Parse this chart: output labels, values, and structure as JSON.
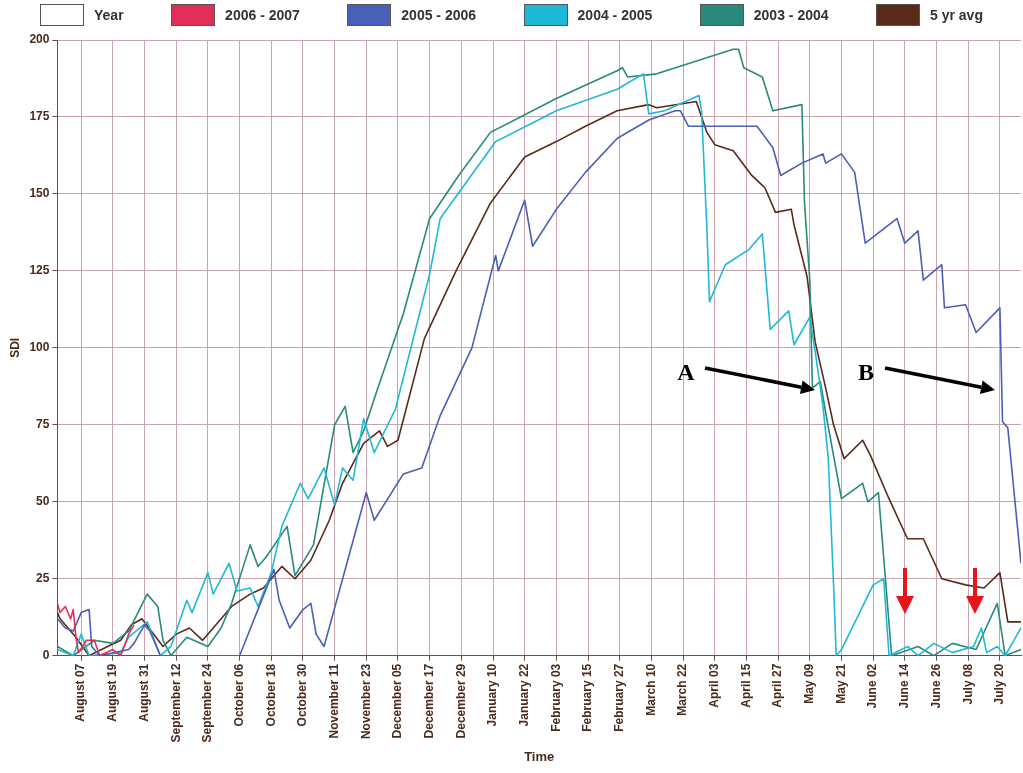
{
  "chart_data": {
    "type": "line",
    "xlabel": "Time",
    "ylabel": "SDI",
    "legend_title": "Year",
    "legend": "top",
    "grid": true,
    "xlim": [
      "2003-07-29",
      "2004-07-28"
    ],
    "ylim": [
      0,
      200
    ],
    "yticks": [
      0,
      25,
      50,
      75,
      100,
      125,
      150,
      175,
      200
    ],
    "xticks": [
      {
        "value": "2003-08-07",
        "label": "August 07"
      },
      {
        "value": "2003-08-19",
        "label": "August 19"
      },
      {
        "value": "2003-08-31",
        "label": "August 31"
      },
      {
        "value": "2003-09-12",
        "label": "September 12"
      },
      {
        "value": "2003-09-24",
        "label": "September 24"
      },
      {
        "value": "2003-10-06",
        "label": "October 06"
      },
      {
        "value": "2003-10-18",
        "label": "October 18"
      },
      {
        "value": "2003-10-30",
        "label": "October 30"
      },
      {
        "value": "2003-11-11",
        "label": "November 11"
      },
      {
        "value": "2003-11-23",
        "label": "November 23"
      },
      {
        "value": "2003-12-05",
        "label": "December 05"
      },
      {
        "value": "2003-12-17",
        "label": "December 17"
      },
      {
        "value": "2003-12-29",
        "label": "December 29"
      },
      {
        "value": "2004-01-10",
        "label": "January 10"
      },
      {
        "value": "2004-01-22",
        "label": "January 22"
      },
      {
        "value": "2004-02-03",
        "label": "February 03"
      },
      {
        "value": "2004-02-15",
        "label": "February 15"
      },
      {
        "value": "2004-02-27",
        "label": "February 27"
      },
      {
        "value": "2004-03-10",
        "label": "March 10"
      },
      {
        "value": "2004-03-22",
        "label": "March 22"
      },
      {
        "value": "2004-04-03",
        "label": "April 03"
      },
      {
        "value": "2004-04-15",
        "label": "April 15"
      },
      {
        "value": "2004-04-27",
        "label": "April 27"
      },
      {
        "value": "2004-05-09",
        "label": "May 09"
      },
      {
        "value": "2004-05-21",
        "label": "May 21"
      },
      {
        "value": "2004-06-02",
        "label": "June 02"
      },
      {
        "value": "2004-06-14",
        "label": "June 14"
      },
      {
        "value": "2004-06-26",
        "label": "June 26"
      },
      {
        "value": "2004-07-08",
        "label": "July 08"
      },
      {
        "value": "2004-07-20",
        "label": "July 20"
      }
    ],
    "annotations": [
      "A",
      "B"
    ],
    "series": [
      {
        "name": "2006 - 2007",
        "color": "#e0305a",
        "x": [
          "2003-07-29",
          "2003-07-30",
          "2003-08-01",
          "2003-08-03",
          "2003-08-04",
          "2003-08-05",
          "2003-08-06",
          "2003-08-09",
          "2003-08-12",
          "2003-08-14",
          "2003-08-19",
          "2003-08-22",
          "2003-08-25",
          "2003-08-27"
        ],
        "values": [
          17,
          14,
          16,
          12,
          15,
          6,
          1,
          5,
          5,
          0,
          2,
          0,
          7,
          10
        ]
      },
      {
        "name": "2005 - 2006",
        "color": "#4a5fb8",
        "x": [
          "2003-07-29",
          "2003-08-01",
          "2003-08-04",
          "2003-08-07",
          "2003-08-10",
          "2003-08-11",
          "2003-08-14",
          "2003-08-25",
          "2003-08-27",
          "2003-08-31",
          "2003-09-02",
          "2003-09-06",
          "2003-10-06",
          "2003-10-19",
          "2003-10-21",
          "2003-10-25",
          "2003-10-30",
          "2003-11-02",
          "2003-11-04",
          "2003-11-07",
          "2003-11-23",
          "2003-11-26",
          "2003-12-07",
          "2003-12-14",
          "2003-12-21",
          "2004-01-02",
          "2004-01-11",
          "2004-01-12",
          "2004-01-22",
          "2004-01-25",
          "2004-02-03",
          "2004-02-14",
          "2004-02-26",
          "2004-03-09",
          "2004-03-19",
          "2004-03-21",
          "2004-03-24",
          "2004-04-19",
          "2004-04-25",
          "2004-04-28",
          "2004-05-06",
          "2004-05-14",
          "2004-05-15",
          "2004-05-21",
          "2004-05-26",
          "2004-05-30",
          "2004-06-05",
          "2004-06-11",
          "2004-06-14",
          "2004-06-19",
          "2004-06-21",
          "2004-06-28",
          "2004-06-29",
          "2004-07-07",
          "2004-07-11",
          "2004-07-20",
          "2004-07-21",
          "2004-07-23",
          "2004-07-28"
        ],
        "values": [
          12,
          9,
          8,
          14,
          15,
          3,
          0,
          2,
          4,
          10,
          8,
          0,
          0,
          28,
          18,
          9,
          15,
          17,
          7,
          3,
          53,
          44,
          59,
          61,
          78,
          100,
          130,
          125,
          148,
          133,
          145,
          157,
          168,
          174,
          177,
          177,
          172,
          172,
          165,
          156,
          160,
          163,
          160,
          163,
          157,
          134,
          138,
          142,
          134,
          138,
          122,
          127,
          113,
          114,
          105,
          113,
          76,
          74,
          30
        ]
      },
      {
        "name": "2004 - 2005",
        "color": "#20b8d8",
        "x": [
          "2003-07-29",
          "2003-08-04",
          "2003-08-07",
          "2003-08-10",
          "2003-08-22",
          "2003-08-25",
          "2003-09-01",
          "2003-09-06",
          "2003-09-10",
          "2003-09-16",
          "2003-09-18",
          "2003-09-24",
          "2003-09-26",
          "2003-10-02",
          "2003-10-05",
          "2003-10-10",
          "2003-10-13",
          "2003-10-18",
          "2003-10-22",
          "2003-10-29",
          "2003-11-01",
          "2003-11-07",
          "2003-11-11",
          "2003-11-14",
          "2003-11-18",
          "2003-11-22",
          "2003-11-26",
          "2003-12-04",
          "2003-12-17",
          "2003-12-21",
          "2004-01-11",
          "2004-02-03",
          "2004-02-26",
          "2004-03-07",
          "2004-03-09",
          "2004-03-15",
          "2004-03-28",
          "2004-03-29",
          "2004-03-31",
          "2004-04-01",
          "2004-04-07",
          "2004-04-16",
          "2004-04-21",
          "2004-04-24",
          "2004-05-01",
          "2004-05-03",
          "2004-05-09",
          "2004-05-11",
          "2004-05-14",
          "2004-05-16",
          "2004-05-18",
          "2004-05-19",
          "2004-05-21",
          "2004-06-02",
          "2004-06-06",
          "2004-06-08",
          "2004-06-15",
          "2004-06-19",
          "2004-06-25",
          "2004-07-02",
          "2004-07-10",
          "2004-07-13",
          "2004-07-15",
          "2004-07-19",
          "2004-07-22",
          "2004-07-28"
        ],
        "values": [
          2,
          0,
          7,
          0,
          1,
          6,
          11,
          0,
          3,
          18,
          14,
          27,
          20,
          30,
          21,
          22,
          16,
          27,
          42,
          56,
          51,
          61,
          49,
          61,
          57,
          77,
          66,
          80,
          124,
          142,
          167,
          177,
          184,
          189,
          176,
          177,
          182,
          177,
          139,
          115,
          127,
          132,
          137,
          106,
          112,
          101,
          110,
          99,
          81,
          64,
          23,
          0,
          2,
          23,
          25,
          0,
          3,
          0,
          4,
          1,
          3,
          9,
          1,
          3,
          0,
          9
        ]
      },
      {
        "name": "2003 - 2004",
        "color": "#2a8a7a",
        "x": [
          "2003-07-29",
          "2003-08-04",
          "2003-08-12",
          "2003-08-19",
          "2003-08-25",
          "2003-09-01",
          "2003-09-05",
          "2003-09-07",
          "2003-09-10",
          "2003-09-16",
          "2003-09-24",
          "2003-09-29",
          "2003-10-03",
          "2003-10-10",
          "2003-10-13",
          "2003-10-16",
          "2003-10-24",
          "2003-10-27",
          "2003-11-03",
          "2003-11-11",
          "2003-11-15",
          "2003-11-18",
          "2003-11-22",
          "2003-11-27",
          "2003-12-07",
          "2003-12-17",
          "2003-12-28",
          "2004-01-09",
          "2004-02-03",
          "2004-02-26",
          "2004-02-28",
          "2004-03-01",
          "2004-03-12",
          "2004-04-10",
          "2004-04-12",
          "2004-04-14",
          "2004-04-21",
          "2004-04-25",
          "2004-05-06",
          "2004-05-07",
          "2004-05-09",
          "2004-05-10",
          "2004-05-13",
          "2004-05-15",
          "2004-05-21",
          "2004-05-29",
          "2004-05-31",
          "2004-06-04",
          "2004-06-09",
          "2004-06-19",
          "2004-06-25",
          "2004-07-02",
          "2004-07-11",
          "2004-07-19",
          "2004-07-22",
          "2004-07-28"
        ],
        "values": [
          3,
          0,
          5,
          4,
          8,
          20,
          16,
          5,
          0,
          6,
          3,
          9,
          17,
          36,
          29,
          32,
          42,
          26,
          36,
          75,
          81,
          66,
          73,
          86,
          111,
          142,
          156,
          170,
          181,
          190,
          191,
          188,
          189,
          197,
          197,
          191,
          188,
          177,
          179,
          147,
          122,
          87,
          89,
          79,
          51,
          56,
          50,
          53,
          0,
          3,
          0,
          4,
          2,
          17,
          0,
          2
        ]
      },
      {
        "name": "5 yr avg",
        "color": "#5a2a1a",
        "x": [
          "2003-07-29",
          "2003-07-30",
          "2003-08-05",
          "2003-08-10",
          "2003-08-17",
          "2003-08-22",
          "2003-08-26",
          "2003-08-30",
          "2003-09-07",
          "2003-09-12",
          "2003-09-17",
          "2003-09-22",
          "2003-09-27",
          "2003-10-03",
          "2003-10-10",
          "2003-10-15",
          "2003-10-22",
          "2003-10-27",
          "2003-11-02",
          "2003-11-09",
          "2003-11-14",
          "2003-11-22",
          "2003-11-28",
          "2003-12-01",
          "2003-12-05",
          "2003-12-15",
          "2003-12-27",
          "2004-01-09",
          "2004-01-22",
          "2004-02-03",
          "2004-02-14",
          "2004-02-26",
          "2004-03-09",
          "2004-03-12",
          "2004-03-27",
          "2004-03-31",
          "2004-04-03",
          "2004-04-10",
          "2004-04-17",
          "2004-04-22",
          "2004-04-26",
          "2004-05-02",
          "2004-05-03",
          "2004-05-08",
          "2004-05-11",
          "2004-05-15",
          "2004-05-18",
          "2004-05-22",
          "2004-05-29",
          "2004-06-01",
          "2004-06-08",
          "2004-06-15",
          "2004-06-21",
          "2004-06-28",
          "2004-07-07",
          "2004-07-14",
          "2004-07-20",
          "2004-07-23",
          "2004-07-28"
        ],
        "values": [
          14,
          12,
          6,
          0,
          3,
          5,
          10,
          12,
          3,
          7,
          9,
          5,
          10,
          16,
          20,
          22,
          29,
          25,
          31,
          44,
          56,
          69,
          73,
          68,
          70,
          103,
          125,
          147,
          162,
          167,
          172,
          177,
          179,
          178,
          180,
          170,
          166,
          164,
          156,
          152,
          144,
          145,
          140,
          123,
          102,
          87,
          75,
          64,
          70,
          65,
          51,
          38,
          38,
          25,
          23,
          22,
          27,
          11,
          11
        ]
      }
    ]
  }
}
